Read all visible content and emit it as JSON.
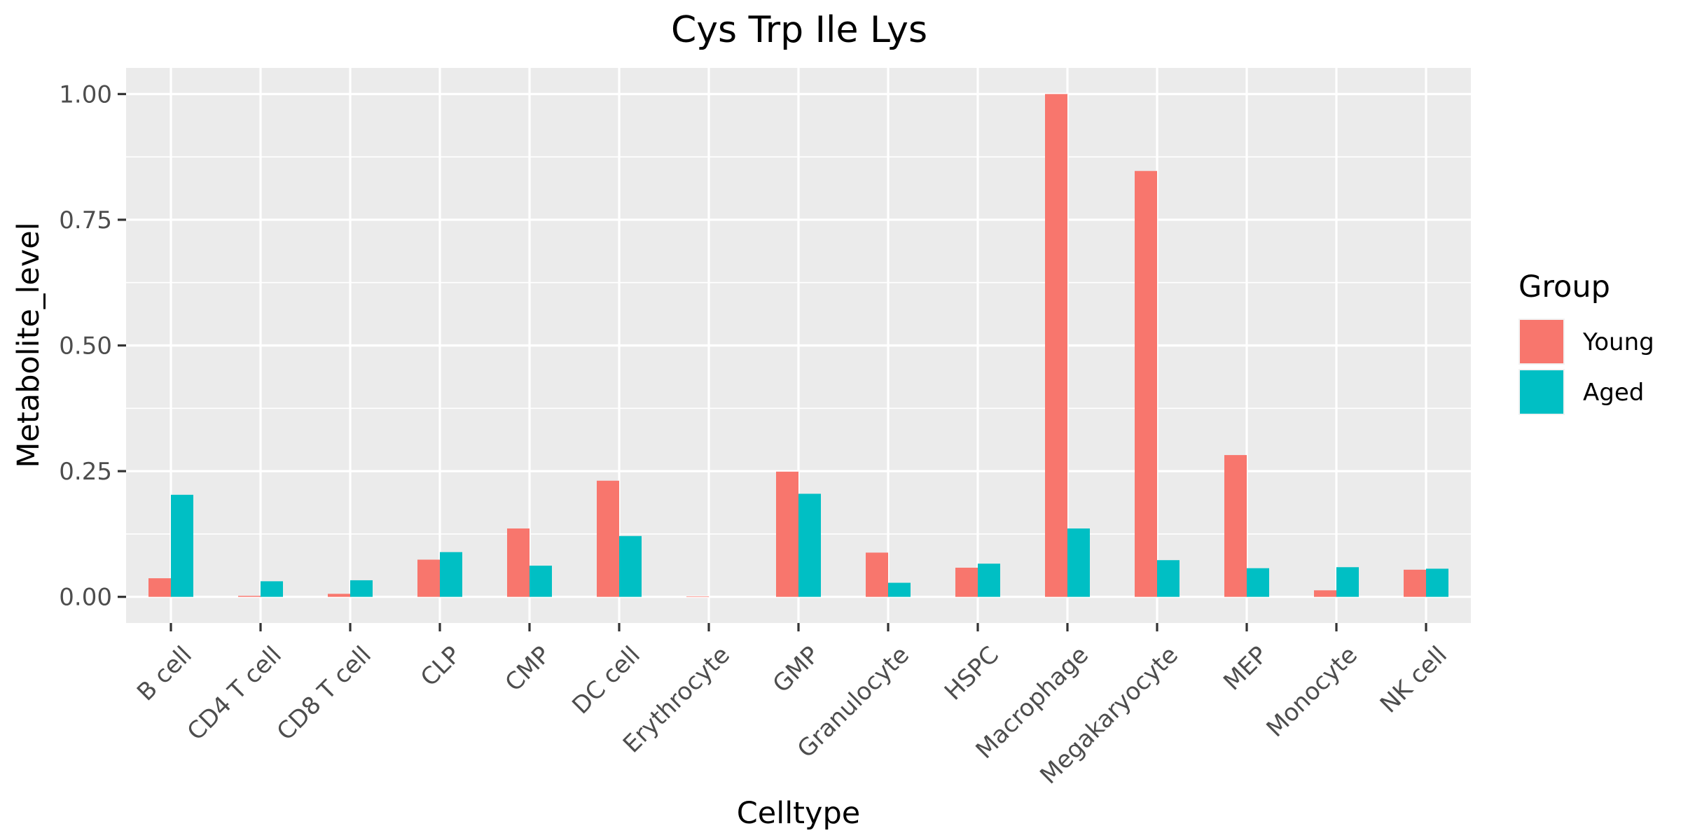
{
  "chart_data": {
    "type": "bar",
    "title": "Cys Trp Ile Lys",
    "xlabel": "Celltype",
    "ylabel": "Metabolite_level",
    "ylim": [
      -0.052,
      1.052
    ],
    "yticks": [
      0.0,
      0.25,
      0.5,
      0.75,
      1.0
    ],
    "ytick_labels": [
      "0.00",
      "0.25",
      "0.50",
      "0.75",
      "1.00"
    ],
    "grid": true,
    "legend": {
      "title": "Group",
      "position": "right"
    },
    "categories": [
      "B cell",
      "CD4 T cell",
      "CD8 T cell",
      "CLP",
      "CMP",
      "DC cell",
      "Erythrocyte",
      "GMP",
      "Granulocyte",
      "HSPC",
      "Macrophage",
      "Megakaryocyte",
      "MEP",
      "Monocyte",
      "NK cell"
    ],
    "series": [
      {
        "name": "Young",
        "color": "#F8766D",
        "values": [
          0.037,
          0.002,
          0.006,
          0.074,
          0.136,
          0.231,
          0.001,
          0.249,
          0.088,
          0.058,
          1.0,
          0.847,
          0.282,
          0.013,
          0.054
        ]
      },
      {
        "name": "Aged",
        "color": "#00BFC4",
        "values": [
          0.203,
          0.031,
          0.033,
          0.089,
          0.062,
          0.121,
          0.0,
          0.205,
          0.028,
          0.066,
          0.136,
          0.073,
          0.057,
          0.059,
          0.056
        ]
      }
    ]
  }
}
